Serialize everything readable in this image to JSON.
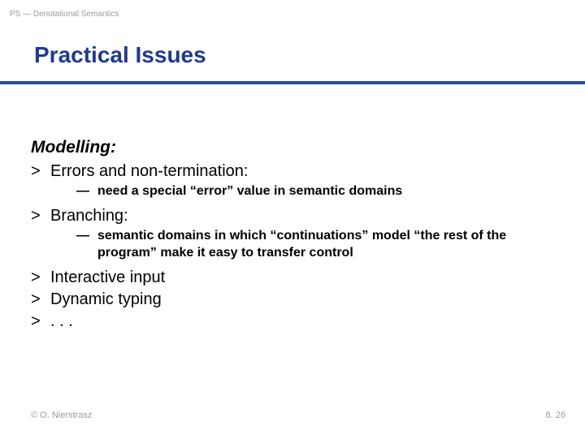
{
  "header_label": "PS — Denotational Semantics",
  "title": "Practical Issues",
  "colors": {
    "title": "#1f3b8a",
    "rule": "#2a4a9a",
    "muted": "#9a9a9a",
    "text": "#000000",
    "background": "#ffffff"
  },
  "font": {
    "title_size_pt": 28,
    "section_size_pt": 21,
    "l1_size_pt": 20,
    "l2_size_pt": 16,
    "footer_size_pt": 11
  },
  "section_heading": "Modelling:",
  "items": {
    "i1": {
      "label": "Errors and non-termination:"
    },
    "i1_sub": {
      "text": "need a special “error” value in semantic domains"
    },
    "i2": {
      "label": "Branching:"
    },
    "i2_sub": {
      "text": "semantic domains in which “continuations” model “the rest of the program” make it easy to transfer control"
    },
    "i3": {
      "label": "Interactive input"
    },
    "i4": {
      "label": "Dynamic typing"
    },
    "i5": {
      "label": ". . ."
    }
  },
  "bullets": {
    "l1": ">",
    "l2": "—"
  },
  "footer": {
    "left": "© O. Nierstrasz",
    "right": "8. 26"
  }
}
